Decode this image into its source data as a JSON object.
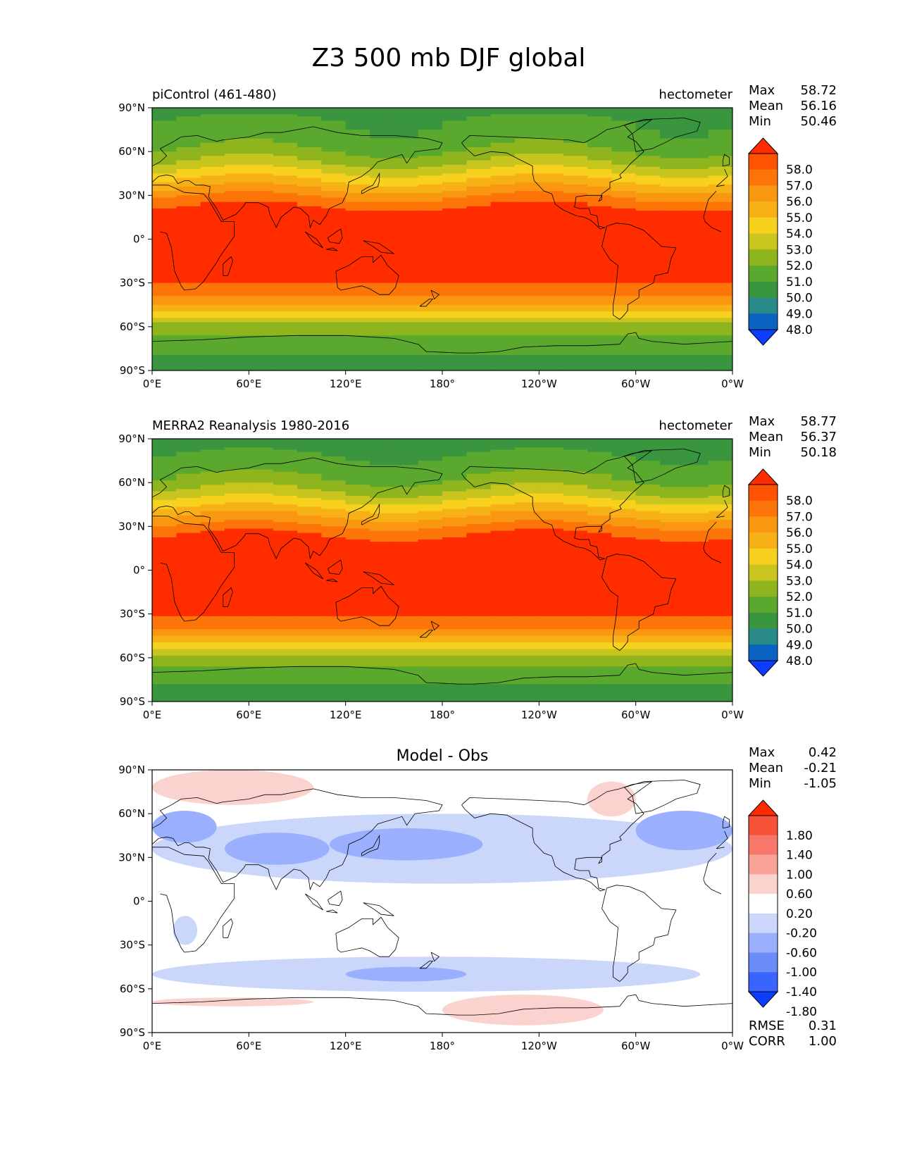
{
  "figure": {
    "title": "Z3 500 mb DJF global",
    "colors": {
      "levels_palette": [
        "#0b3dff",
        "#0a63c2",
        "#2a8a8a",
        "#3a953f",
        "#5aa82d",
        "#8fb51e",
        "#c7c51e",
        "#f8d01e",
        "#f7b116",
        "#fa9710",
        "#fd7408",
        "#ff5303",
        "#ff2c00"
      ],
      "diff_palette": [
        "#0b3dff",
        "#3a64ff",
        "#6a8cf7",
        "#9bafff",
        "#cbd6fb",
        "#ffffff",
        "#fbd3ce",
        "#f9a496",
        "#f7786a",
        "#f8533a",
        "#ff2c00"
      ]
    }
  },
  "chart_data": [
    {
      "type": "heatmap",
      "title": "piControl (461-480)",
      "units": "hectometer",
      "stats": [
        {
          "label": "Max",
          "value": "58.72"
        },
        {
          "label": "Mean",
          "value": "56.16"
        },
        {
          "label": "Min",
          "value": "50.46"
        }
      ],
      "colorbar_ticks": [
        "58.0",
        "57.0",
        "56.0",
        "55.0",
        "54.0",
        "53.0",
        "52.0",
        "51.0",
        "50.0",
        "49.0",
        "48.0"
      ],
      "levels": [
        48,
        49,
        50,
        51,
        52,
        53,
        54,
        55,
        56,
        57,
        58
      ],
      "x_ticks": [
        "0°E",
        "60°E",
        "120°E",
        "180°",
        "120°W",
        "60°W",
        "0°W"
      ],
      "y_ticks": [
        "90°N",
        "60°N",
        "30°N",
        "0°",
        "30°S",
        "60°S",
        "90°S"
      ],
      "xlim": [
        0,
        360
      ],
      "ylim": [
        -90,
        90
      ],
      "zonal_profile": {
        "lat": [
          90,
          80,
          70,
          60,
          50,
          45,
          40,
          35,
          30,
          25,
          20,
          10,
          0,
          -10,
          -20,
          -30,
          -35,
          -40,
          -45,
          -50,
          -55,
          -60,
          -70,
          -80,
          -90
        ],
        "value": [
          50.7,
          51.1,
          51.4,
          52.1,
          53.4,
          54.2,
          55.1,
          55.9,
          56.8,
          57.6,
          58.2,
          58.6,
          58.7,
          58.6,
          58.4,
          58.0,
          57.5,
          56.8,
          55.9,
          54.8,
          53.6,
          52.5,
          51.6,
          51.0,
          50.5
        ]
      }
    },
    {
      "type": "heatmap",
      "title": "MERRA2 Reanalysis 1980-2016",
      "units": "hectometer",
      "stats": [
        {
          "label": "Max",
          "value": "58.77"
        },
        {
          "label": "Mean",
          "value": "56.37"
        },
        {
          "label": "Min",
          "value": "50.18"
        }
      ],
      "colorbar_ticks": [
        "58.0",
        "57.0",
        "56.0",
        "55.0",
        "54.0",
        "53.0",
        "52.0",
        "51.0",
        "50.0",
        "49.0",
        "48.0"
      ],
      "levels": [
        48,
        49,
        50,
        51,
        52,
        53,
        54,
        55,
        56,
        57,
        58
      ],
      "x_ticks": [
        "0°E",
        "60°E",
        "120°E",
        "180°",
        "120°W",
        "60°W",
        "0°W"
      ],
      "y_ticks": [
        "90°N",
        "60°N",
        "30°N",
        "0°",
        "30°S",
        "60°S",
        "90°S"
      ],
      "xlim": [
        0,
        360
      ],
      "ylim": [
        -90,
        90
      ],
      "zonal_profile": {
        "lat": [
          90,
          80,
          70,
          60,
          50,
          45,
          40,
          35,
          30,
          25,
          20,
          10,
          0,
          -10,
          -20,
          -30,
          -35,
          -40,
          -45,
          -50,
          -55,
          -60,
          -70,
          -80,
          -90
        ],
        "value": [
          50.6,
          51.0,
          51.5,
          52.3,
          53.7,
          54.6,
          55.5,
          56.3,
          57.1,
          57.9,
          58.4,
          58.7,
          58.77,
          58.7,
          58.5,
          58.2,
          57.7,
          57.0,
          56.1,
          55.0,
          53.8,
          52.6,
          51.5,
          50.9,
          50.4
        ]
      }
    },
    {
      "type": "heatmap",
      "title": "Model - Obs",
      "units": "",
      "stats": [
        {
          "label": "Max",
          "value": "0.42"
        },
        {
          "label": "Mean",
          "value": "-0.21"
        },
        {
          "label": "Min",
          "value": "-1.05"
        }
      ],
      "colorbar_ticks": [
        "1.80",
        "1.40",
        "1.00",
        "0.60",
        "0.20",
        "-0.20",
        "-0.60",
        "-1.00",
        "-1.40",
        "-1.80"
      ],
      "levels": [
        -1.8,
        -1.4,
        -1.0,
        -0.6,
        -0.2,
        0.2,
        0.6,
        1.0,
        1.4,
        1.8
      ],
      "x_ticks": [
        "0°E",
        "60°E",
        "120°E",
        "180°",
        "120°W",
        "60°W",
        "0°W"
      ],
      "y_ticks": [
        "90°N",
        "60°N",
        "30°N",
        "0°",
        "30°S",
        "60°S",
        "90°S"
      ],
      "xlim": [
        0,
        360
      ],
      "ylim": [
        -90,
        90
      ],
      "metrics": [
        {
          "label": "RMSE",
          "value": "0.31"
        },
        {
          "label": "CORR",
          "value": "1.00"
        }
      ],
      "regions": [
        {
          "lon": [
            0,
            360
          ],
          "lat": [
            12,
            60
          ],
          "value": -0.4
        },
        {
          "lon": [
            0,
            40
          ],
          "lat": [
            40,
            62
          ],
          "value": -0.7
        },
        {
          "lon": [
            45,
            110
          ],
          "lat": [
            25,
            47
          ],
          "value": -0.7
        },
        {
          "lon": [
            110,
            205
          ],
          "lat": [
            28,
            50
          ],
          "value": -0.7
        },
        {
          "lon": [
            300,
            360
          ],
          "lat": [
            35,
            62
          ],
          "value": -0.7
        },
        {
          "lon": [
            270,
            300
          ],
          "lat": [
            58,
            82
          ],
          "value": 0.3
        },
        {
          "lon": [
            0,
            100
          ],
          "lat": [
            66,
            90
          ],
          "value": 0.3
        },
        {
          "lon": [
            0,
            340
          ],
          "lat": [
            -62,
            -38
          ],
          "value": -0.4
        },
        {
          "lon": [
            120,
            195
          ],
          "lat": [
            -55,
            -45
          ],
          "value": -0.7
        },
        {
          "lon": [
            13,
            28
          ],
          "lat": [
            -30,
            -10
          ],
          "value": -0.4
        },
        {
          "lon": [
            180,
            280
          ],
          "lat": [
            -85,
            -64
          ],
          "value": 0.3
        },
        {
          "lon": [
            0,
            100
          ],
          "lat": [
            -72,
            -66
          ],
          "value": 0.3
        }
      ]
    }
  ]
}
